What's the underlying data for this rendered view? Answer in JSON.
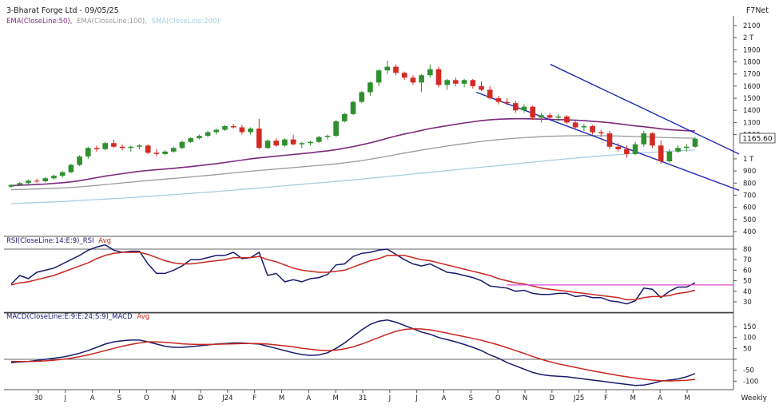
{
  "header": {
    "title": "3-Bharat Forge Ltd - 09/05/25",
    "brand": "F7Net",
    "indicator_labels": [
      {
        "text": "EMA(CloseLine:50),",
        "color": "#7b2a7b"
      },
      {
        "text": "EMA(CloseLine:100),",
        "color": "#9a9a9a"
      },
      {
        "text": "SMA(CloseLine:200)",
        "color": "#a9cde0"
      }
    ],
    "timeframe": "Weekly"
  },
  "chart_data": [
    {
      "type": "candlestick",
      "panel": "price",
      "yticks": [
        "2100",
        "2 T",
        "1900",
        "1800",
        "1700",
        "1600",
        "1500",
        "1400",
        "1300",
        "1200",
        "1 T",
        "900",
        "800",
        "700",
        "600",
        "500",
        "400"
      ],
      "ylim": [
        400,
        2100
      ],
      "last_price_label": "1165.60",
      "xticks": [
        "30",
        "J",
        "A",
        "S",
        "O",
        "N",
        "D",
        "J24",
        "F",
        "M",
        "A",
        "M",
        "31",
        "J",
        "J",
        "A",
        "S",
        "O",
        "N",
        "D",
        "J25",
        "F",
        "M",
        "A",
        "M"
      ],
      "ohlc": [
        [
          770,
          790,
          760,
          785
        ],
        [
          785,
          810,
          775,
          800
        ],
        [
          800,
          830,
          790,
          820
        ],
        [
          820,
          835,
          800,
          815
        ],
        [
          815,
          850,
          805,
          840
        ],
        [
          840,
          870,
          830,
          860
        ],
        [
          860,
          900,
          845,
          890
        ],
        [
          890,
          960,
          880,
          950
        ],
        [
          950,
          1030,
          940,
          1020
        ],
        [
          1020,
          1100,
          1000,
          1090
        ],
        [
          1090,
          1110,
          1060,
          1080
        ],
        [
          1080,
          1140,
          1070,
          1130
        ],
        [
          1130,
          1160,
          1090,
          1100
        ],
        [
          1100,
          1120,
          1070,
          1090
        ],
        [
          1090,
          1110,
          1060,
          1100
        ],
        [
          1100,
          1120,
          1080,
          1110
        ],
        [
          1110,
          1120,
          1040,
          1050
        ],
        [
          1050,
          1080,
          1020,
          1040
        ],
        [
          1040,
          1070,
          1030,
          1060
        ],
        [
          1060,
          1100,
          1050,
          1090
        ],
        [
          1090,
          1150,
          1080,
          1140
        ],
        [
          1140,
          1180,
          1130,
          1170
        ],
        [
          1170,
          1200,
          1160,
          1190
        ],
        [
          1190,
          1230,
          1180,
          1220
        ],
        [
          1220,
          1250,
          1200,
          1240
        ],
        [
          1240,
          1280,
          1230,
          1270
        ],
        [
          1270,
          1290,
          1250,
          1260
        ],
        [
          1260,
          1280,
          1200,
          1220
        ],
        [
          1220,
          1260,
          1200,
          1250
        ],
        [
          1250,
          1330,
          1080,
          1090
        ],
        [
          1090,
          1160,
          1080,
          1150
        ],
        [
          1150,
          1170,
          1100,
          1110
        ],
        [
          1110,
          1170,
          1100,
          1160
        ],
        [
          1160,
          1200,
          1110,
          1120
        ],
        [
          1120,
          1140,
          1090,
          1130
        ],
        [
          1130,
          1150,
          1110,
          1140
        ],
        [
          1140,
          1190,
          1130,
          1180
        ],
        [
          1180,
          1200,
          1160,
          1190
        ],
        [
          1190,
          1320,
          1180,
          1310
        ],
        [
          1310,
          1380,
          1300,
          1370
        ],
        [
          1370,
          1480,
          1360,
          1470
        ],
        [
          1470,
          1560,
          1460,
          1550
        ],
        [
          1550,
          1640,
          1520,
          1630
        ],
        [
          1630,
          1740,
          1600,
          1730
        ],
        [
          1730,
          1810,
          1700,
          1760
        ],
        [
          1760,
          1780,
          1690,
          1710
        ],
        [
          1710,
          1720,
          1650,
          1670
        ],
        [
          1670,
          1690,
          1610,
          1630
        ],
        [
          1630,
          1700,
          1550,
          1690
        ],
        [
          1690,
          1780,
          1670,
          1740
        ],
        [
          1740,
          1760,
          1590,
          1610
        ],
        [
          1610,
          1660,
          1570,
          1650
        ],
        [
          1650,
          1670,
          1600,
          1620
        ],
        [
          1620,
          1660,
          1590,
          1650
        ],
        [
          1650,
          1660,
          1580,
          1600
        ],
        [
          1600,
          1640,
          1560,
          1570
        ],
        [
          1570,
          1600,
          1490,
          1500
        ],
        [
          1500,
          1520,
          1450,
          1470
        ],
        [
          1470,
          1500,
          1440,
          1460
        ],
        [
          1460,
          1480,
          1380,
          1400
        ],
        [
          1400,
          1450,
          1380,
          1430
        ],
        [
          1430,
          1440,
          1320,
          1340
        ],
        [
          1340,
          1380,
          1300,
          1360
        ],
        [
          1360,
          1380,
          1320,
          1340
        ],
        [
          1340,
          1370,
          1310,
          1350
        ],
        [
          1350,
          1360,
          1290,
          1300
        ],
        [
          1300,
          1320,
          1240,
          1260
        ],
        [
          1260,
          1290,
          1230,
          1270
        ],
        [
          1270,
          1280,
          1200,
          1220
        ],
        [
          1220,
          1240,
          1180,
          1210
        ],
        [
          1210,
          1230,
          1080,
          1100
        ],
        [
          1100,
          1130,
          1060,
          1080
        ],
        [
          1080,
          1110,
          1010,
          1040
        ],
        [
          1040,
          1140,
          1030,
          1120
        ],
        [
          1120,
          1230,
          1100,
          1210
        ],
        [
          1210,
          1220,
          1090,
          1110
        ],
        [
          1110,
          1150,
          960,
          980
        ],
        [
          980,
          1080,
          970,
          1060
        ],
        [
          1060,
          1110,
          1050,
          1090
        ],
        [
          1090,
          1120,
          1060,
          1100
        ],
        [
          1100,
          1180,
          1090,
          1166
        ]
      ],
      "series": [
        {
          "name": "EMA(CloseLine:50)",
          "color": "#7b2a7b",
          "values": [
            780,
            782,
            785,
            788,
            792,
            797,
            803,
            810,
            820,
            832,
            845,
            857,
            868,
            878,
            888,
            897,
            904,
            910,
            916,
            922,
            929,
            936,
            944,
            952,
            961,
            970,
            980,
            990,
            1000,
            1008,
            1015,
            1022,
            1029,
            1036,
            1043,
            1050,
            1058,
            1066,
            1076,
            1088,
            1101,
            1116,
            1132,
            1150,
            1170,
            1188,
            1205,
            1220,
            1235,
            1250,
            1262,
            1274,
            1285,
            1296,
            1306,
            1315,
            1322,
            1327,
            1330,
            1331,
            1331,
            1330,
            1328,
            1326,
            1324,
            1322,
            1319,
            1315,
            1310,
            1305,
            1298,
            1290,
            1281,
            1272,
            1265,
            1257,
            1248,
            1241,
            1236,
            1232,
            1230
          ]
        },
        {
          "name": "EMA(CloseLine:100)",
          "color": "#9a9a9a",
          "values": [
            745,
            747,
            749,
            751,
            754,
            757,
            760,
            764,
            769,
            775,
            781,
            788,
            795,
            802,
            808,
            815,
            821,
            827,
            833,
            839,
            845,
            851,
            857,
            863,
            870,
            877,
            884,
            891,
            898,
            904,
            910,
            916,
            922,
            928,
            934,
            940,
            946,
            952,
            959,
            967,
            976,
            986,
            997,
            1009,
            1022,
            1035,
            1048,
            1060,
            1072,
            1084,
            1095,
            1106,
            1116,
            1126,
            1135,
            1144,
            1152,
            1159,
            1165,
            1170,
            1175,
            1179,
            1183,
            1186,
            1188,
            1190,
            1191,
            1192,
            1192,
            1191,
            1190,
            1188,
            1186,
            1184,
            1182,
            1180,
            1177,
            1175,
            1173,
            1171,
            1170
          ]
        },
        {
          "name": "SMA(CloseLine:200)",
          "color": "#a9cde0",
          "values": [
            630,
            633,
            636,
            639,
            642,
            645,
            648,
            652,
            656,
            660,
            664,
            668,
            672,
            676,
            680,
            685,
            690,
            695,
            700,
            705,
            710,
            715,
            720,
            725,
            730,
            736,
            742,
            748,
            754,
            760,
            766,
            772,
            778,
            784,
            790,
            796,
            802,
            808,
            814,
            820,
            826,
            833,
            840,
            847,
            854,
            861,
            868,
            875,
            882,
            889,
            896,
            903,
            910,
            917,
            924,
            931,
            938,
            945,
            952,
            959,
            966,
            973,
            980,
            987,
            994,
            1000,
            1006,
            1012,
            1018,
            1024,
            1030,
            1035,
            1040,
            1045,
            1050,
            1054,
            1058,
            1062,
            1066,
            1070,
            1073
          ]
        }
      ],
      "trendlines": [
        {
          "name": "upper-channel",
          "from": [
            1.6,
            1780
          ],
          "to": [
            2.16,
            1040
          ]
        },
        {
          "name": "lower-channel",
          "from": [
            1.38,
            1550
          ],
          "to": [
            2.16,
            740
          ]
        }
      ]
    },
    {
      "type": "line",
      "panel": "rsi",
      "title": "RSI(CloseLine:14:E:9)_RSI",
      "avg_label": "Avg",
      "yticks": [
        "80",
        "70",
        "60",
        "50",
        "40",
        "30"
      ],
      "ylim": [
        20,
        85
      ],
      "series": [
        {
          "name": "RSI(CloseLine:14:E:9)_RSI",
          "color": "#1a1a6e",
          "values": [
            47,
            55,
            52,
            58,
            60,
            62,
            66,
            70,
            74,
            79,
            82,
            84,
            79,
            77,
            78,
            78,
            66,
            57,
            57,
            60,
            64,
            70,
            70,
            72,
            74,
            74,
            77,
            71,
            72,
            77,
            55,
            57,
            49,
            51,
            49,
            52,
            53,
            56,
            65,
            66,
            73,
            76,
            77,
            79,
            80,
            75,
            70,
            66,
            64,
            66,
            62,
            58,
            57,
            55,
            53,
            50,
            45,
            44,
            43,
            40,
            41,
            38,
            37,
            37,
            38,
            38,
            35,
            36,
            34,
            34,
            31,
            30,
            28,
            31,
            43,
            42,
            34,
            40,
            44,
            44,
            48
          ]
        },
        {
          "name": "Avg",
          "color": "#c8261f",
          "values": [
            46,
            48,
            49,
            51,
            53,
            55,
            58,
            61,
            64,
            67,
            71,
            74,
            76,
            77,
            77,
            77,
            75,
            72,
            69,
            67,
            66,
            66,
            67,
            68,
            69,
            70,
            72,
            72,
            72,
            73,
            70,
            68,
            65,
            62,
            60,
            59,
            58,
            58,
            59,
            60,
            63,
            66,
            69,
            71,
            74,
            74,
            74,
            72,
            70,
            69,
            67,
            65,
            63,
            61,
            59,
            57,
            55,
            52,
            50,
            48,
            47,
            45,
            43,
            42,
            41,
            40,
            39,
            38,
            37,
            36,
            35,
            34,
            32,
            32,
            34,
            35,
            35,
            36,
            38,
            39,
            41
          ]
        },
        {
          "name": "horizontal-line",
          "color": "#d94bd4",
          "level": 46
        }
      ]
    },
    {
      "type": "line",
      "panel": "macd",
      "title": "MACD(CloseLine:E:9:E:24:S:9)_MACD",
      "avg_label": "Avg",
      "yticks": [
        "150",
        "100",
        "50",
        "0",
        "-50",
        "-100"
      ],
      "ylim": [
        -140,
        180
      ],
      "series": [
        {
          "name": "MACD(CloseLine:E:9:E:24:S:9)_MACD",
          "color": "#1a1a6e",
          "values": [
            -15,
            -12,
            -10,
            -5,
            0,
            5,
            10,
            18,
            28,
            40,
            55,
            70,
            80,
            85,
            88,
            88,
            80,
            70,
            60,
            55,
            55,
            58,
            62,
            66,
            70,
            72,
            75,
            75,
            72,
            70,
            60,
            50,
            40,
            30,
            22,
            18,
            20,
            30,
            50,
            75,
            105,
            135,
            160,
            175,
            180,
            170,
            155,
            140,
            125,
            115,
            100,
            90,
            80,
            68,
            55,
            40,
            20,
            5,
            -15,
            -30,
            -45,
            -60,
            -70,
            -75,
            -78,
            -80,
            -85,
            -90,
            -95,
            -100,
            -105,
            -110,
            -115,
            -120,
            -118,
            -110,
            -100,
            -95,
            -90,
            -80,
            -65
          ]
        },
        {
          "name": "Avg",
          "color": "#c8261f",
          "values": [
            -10,
            -10,
            -10,
            -9,
            -7,
            -4,
            0,
            5,
            12,
            20,
            30,
            40,
            50,
            60,
            68,
            75,
            80,
            80,
            78,
            75,
            71,
            69,
            68,
            68,
            69,
            70,
            71,
            72,
            72,
            72,
            70,
            66,
            62,
            57,
            51,
            46,
            42,
            40,
            42,
            48,
            57,
            70,
            85,
            100,
            115,
            128,
            137,
            140,
            139,
            135,
            128,
            120,
            112,
            104,
            96,
            87,
            77,
            66,
            53,
            40,
            27,
            13,
            0,
            -11,
            -21,
            -29,
            -37,
            -45,
            -53,
            -60,
            -67,
            -74,
            -80,
            -86,
            -91,
            -95,
            -98,
            -99,
            -98,
            -96,
            -92
          ]
        }
      ]
    }
  ]
}
